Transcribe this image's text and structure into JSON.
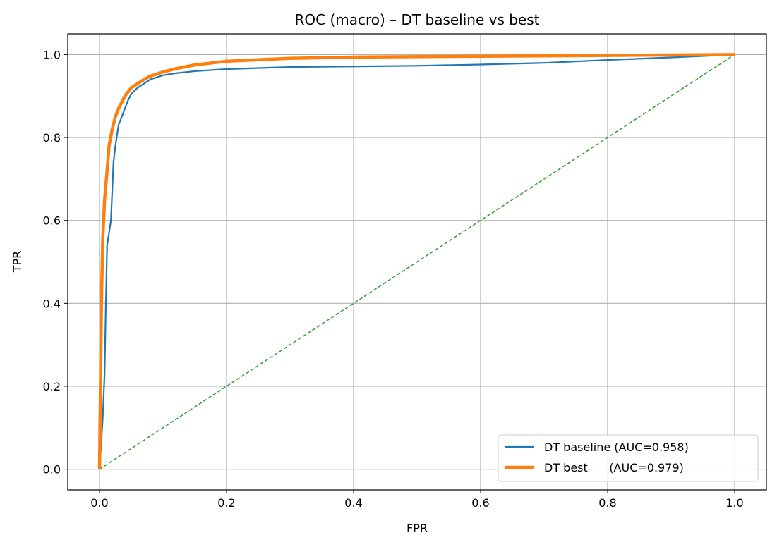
{
  "chart_data": {
    "type": "line",
    "title": "ROC (macro) – DT baseline vs best",
    "xlabel": "FPR",
    "ylabel": "TPR",
    "xlim": [
      -0.05,
      1.05
    ],
    "ylim": [
      -0.05,
      1.05
    ],
    "xticks": [
      0.0,
      0.2,
      0.4,
      0.6,
      0.8,
      1.0
    ],
    "yticks": [
      0.0,
      0.2,
      0.4,
      0.6,
      0.8,
      1.0
    ],
    "xtick_labels": [
      "0.0",
      "0.2",
      "0.4",
      "0.6",
      "0.8",
      "1.0"
    ],
    "ytick_labels": [
      "0.0",
      "0.2",
      "0.4",
      "0.6",
      "0.8",
      "1.0"
    ],
    "grid": true,
    "legend_position": "bottom-right",
    "series": [
      {
        "name": "DT baseline (AUC=0.958)",
        "color": "#1f77b4",
        "style": "solid",
        "x": [
          0.0,
          0.005,
          0.008,
          0.01,
          0.012,
          0.015,
          0.018,
          0.02,
          0.022,
          0.025,
          0.03,
          0.035,
          0.04,
          0.045,
          0.05,
          0.06,
          0.07,
          0.08,
          0.1,
          0.12,
          0.15,
          0.2,
          0.3,
          0.5,
          0.6,
          0.7,
          0.8,
          0.9,
          1.0
        ],
        "y": [
          0.0,
          0.12,
          0.23,
          0.4,
          0.54,
          0.57,
          0.6,
          0.67,
          0.74,
          0.78,
          0.83,
          0.85,
          0.87,
          0.89,
          0.905,
          0.92,
          0.93,
          0.94,
          0.95,
          0.955,
          0.96,
          0.965,
          0.97,
          0.973,
          0.976,
          0.98,
          0.987,
          0.993,
          1.0
        ]
      },
      {
        "name": "DT best      (AUC=0.979)",
        "color": "#ff7f0e",
        "style": "solid-thick",
        "x": [
          0.0,
          0.003,
          0.005,
          0.008,
          0.012,
          0.015,
          0.02,
          0.025,
          0.03,
          0.035,
          0.04,
          0.05,
          0.06,
          0.07,
          0.08,
          0.1,
          0.12,
          0.15,
          0.2,
          0.3,
          0.4,
          0.6,
          0.8,
          1.0
        ],
        "y": [
          0.0,
          0.4,
          0.55,
          0.65,
          0.72,
          0.78,
          0.82,
          0.85,
          0.87,
          0.885,
          0.9,
          0.92,
          0.93,
          0.94,
          0.948,
          0.958,
          0.966,
          0.975,
          0.984,
          0.991,
          0.994,
          0.996,
          0.998,
          1.0
        ]
      },
      {
        "name": "",
        "color": "#2ca02c",
        "style": "dashed",
        "x": [
          0.0,
          1.0
        ],
        "y": [
          0.0,
          1.0
        ]
      }
    ]
  }
}
